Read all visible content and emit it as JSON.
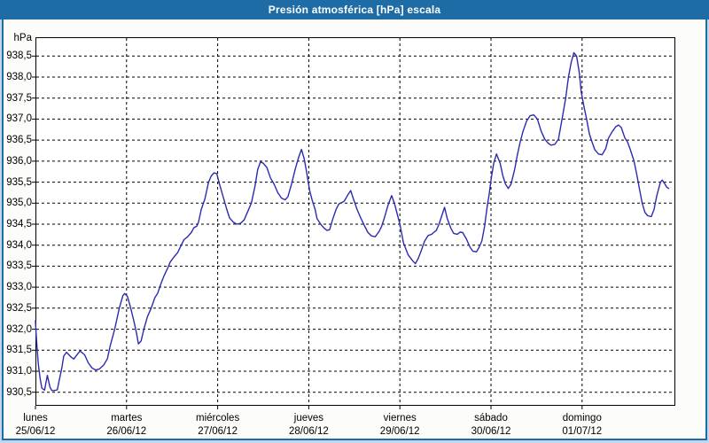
{
  "window": {
    "title": "Presión atmosférica [hPa] escala"
  },
  "colors": {
    "titlebar_blue": "#1e6ca6",
    "outer_halo_blue": "#c3d5e8",
    "content_background": "#fcfdfb",
    "grid_black": "#000000",
    "line_blue": "#2b2bb0"
  },
  "chart_data": {
    "type": "line",
    "title": "Presión atmosférica [hPa] escala",
    "grid": "dashed",
    "legend": "none",
    "line_color": "#2b2bb0",
    "y_axis": {
      "label": "hPa",
      "min": 930.5,
      "max": 938.5,
      "step": 0.5,
      "decimal_separator": ","
    },
    "x_axis": {
      "span_days": 7,
      "days": [
        {
          "name": "lunes",
          "date": "25/06/12"
        },
        {
          "name": "martes",
          "date": "26/06/12"
        },
        {
          "name": "miércoles",
          "date": "27/06/12"
        },
        {
          "name": "jueves",
          "date": "28/06/12"
        },
        {
          "name": "viernes",
          "date": "29/06/12"
        },
        {
          "name": "sábado",
          "date": "30/06/12"
        },
        {
          "name": "domingo",
          "date": "01/07/12"
        }
      ]
    },
    "series": [
      {
        "name": "presión atmosférica (hPa)",
        "points": [
          [
            0.0,
            932.2
          ],
          [
            0.01,
            931.8
          ],
          [
            0.03,
            931.2
          ],
          [
            0.05,
            930.85
          ],
          [
            0.07,
            930.6
          ],
          [
            0.1,
            930.55
          ],
          [
            0.13,
            930.9
          ],
          [
            0.16,
            930.62
          ],
          [
            0.18,
            930.54
          ],
          [
            0.21,
            930.54
          ],
          [
            0.24,
            930.56
          ],
          [
            0.26,
            930.77
          ],
          [
            0.29,
            931.08
          ],
          [
            0.31,
            931.36
          ],
          [
            0.34,
            931.45
          ],
          [
            0.39,
            931.34
          ],
          [
            0.42,
            931.29
          ],
          [
            0.47,
            931.43
          ],
          [
            0.49,
            931.48
          ],
          [
            0.54,
            931.39
          ],
          [
            0.58,
            931.2
          ],
          [
            0.62,
            931.08
          ],
          [
            0.66,
            931.03
          ],
          [
            0.7,
            931.05
          ],
          [
            0.75,
            931.15
          ],
          [
            0.79,
            931.3
          ],
          [
            0.82,
            931.6
          ],
          [
            0.87,
            932.0
          ],
          [
            0.92,
            932.5
          ],
          [
            0.96,
            932.8
          ],
          [
            0.98,
            932.85
          ],
          [
            1.01,
            932.78
          ],
          [
            1.04,
            932.55
          ],
          [
            1.08,
            932.2
          ],
          [
            1.11,
            931.9
          ],
          [
            1.13,
            931.65
          ],
          [
            1.16,
            931.72
          ],
          [
            1.19,
            932.0
          ],
          [
            1.23,
            932.3
          ],
          [
            1.27,
            932.5
          ],
          [
            1.31,
            932.75
          ],
          [
            1.34,
            932.85
          ],
          [
            1.38,
            933.1
          ],
          [
            1.41,
            933.26
          ],
          [
            1.45,
            933.45
          ],
          [
            1.48,
            933.6
          ],
          [
            1.52,
            933.72
          ],
          [
            1.56,
            933.82
          ],
          [
            1.6,
            934.0
          ],
          [
            1.63,
            934.13
          ],
          [
            1.67,
            934.2
          ],
          [
            1.71,
            934.3
          ],
          [
            1.74,
            934.42
          ],
          [
            1.77,
            934.45
          ],
          [
            1.79,
            934.55
          ],
          [
            1.82,
            934.85
          ],
          [
            1.86,
            935.1
          ],
          [
            1.9,
            935.5
          ],
          [
            1.93,
            935.65
          ],
          [
            1.96,
            935.72
          ],
          [
            1.99,
            935.7
          ],
          [
            2.02,
            935.45
          ],
          [
            2.06,
            935.15
          ],
          [
            2.1,
            934.85
          ],
          [
            2.13,
            934.65
          ],
          [
            2.17,
            934.55
          ],
          [
            2.21,
            934.5
          ],
          [
            2.25,
            934.52
          ],
          [
            2.29,
            934.6
          ],
          [
            2.33,
            934.8
          ],
          [
            2.37,
            935.0
          ],
          [
            2.41,
            935.4
          ],
          [
            2.44,
            935.8
          ],
          [
            2.47,
            935.98
          ],
          [
            2.5,
            935.95
          ],
          [
            2.54,
            935.85
          ],
          [
            2.58,
            935.6
          ],
          [
            2.62,
            935.45
          ],
          [
            2.66,
            935.25
          ],
          [
            2.7,
            935.12
          ],
          [
            2.74,
            935.08
          ],
          [
            2.77,
            935.15
          ],
          [
            2.81,
            935.45
          ],
          [
            2.85,
            935.8
          ],
          [
            2.89,
            936.1
          ],
          [
            2.92,
            936.28
          ],
          [
            2.95,
            936.05
          ],
          [
            2.98,
            935.7
          ],
          [
            3.01,
            935.3
          ],
          [
            3.04,
            935.05
          ],
          [
            3.07,
            934.85
          ],
          [
            3.09,
            934.63
          ],
          [
            3.13,
            934.5
          ],
          [
            3.17,
            934.4
          ],
          [
            3.2,
            934.35
          ],
          [
            3.23,
            934.37
          ],
          [
            3.26,
            934.6
          ],
          [
            3.3,
            934.85
          ],
          [
            3.33,
            934.98
          ],
          [
            3.37,
            935.02
          ],
          [
            3.39,
            935.05
          ],
          [
            3.43,
            935.2
          ],
          [
            3.46,
            935.3
          ],
          [
            3.49,
            935.1
          ],
          [
            3.53,
            934.85
          ],
          [
            3.57,
            934.65
          ],
          [
            3.61,
            934.47
          ],
          [
            3.65,
            934.3
          ],
          [
            3.69,
            934.22
          ],
          [
            3.73,
            934.2
          ],
          [
            3.77,
            934.32
          ],
          [
            3.8,
            934.45
          ],
          [
            3.83,
            934.65
          ],
          [
            3.87,
            934.95
          ],
          [
            3.91,
            935.18
          ],
          [
            3.94,
            935.0
          ],
          [
            3.96,
            934.83
          ],
          [
            4.0,
            934.5
          ],
          [
            4.04,
            934.05
          ],
          [
            4.09,
            933.77
          ],
          [
            4.14,
            933.63
          ],
          [
            4.17,
            933.56
          ],
          [
            4.2,
            933.68
          ],
          [
            4.23,
            933.84
          ],
          [
            4.27,
            934.09
          ],
          [
            4.31,
            934.23
          ],
          [
            4.35,
            934.26
          ],
          [
            4.37,
            934.3
          ],
          [
            4.4,
            934.35
          ],
          [
            4.43,
            934.5
          ],
          [
            4.46,
            934.7
          ],
          [
            4.49,
            934.9
          ],
          [
            4.52,
            934.63
          ],
          [
            4.56,
            934.4
          ],
          [
            4.59,
            934.28
          ],
          [
            4.63,
            934.26
          ],
          [
            4.66,
            934.31
          ],
          [
            4.69,
            934.3
          ],
          [
            4.73,
            934.15
          ],
          [
            4.77,
            933.95
          ],
          [
            4.8,
            933.86
          ],
          [
            4.84,
            933.84
          ],
          [
            4.87,
            933.95
          ],
          [
            4.9,
            934.1
          ],
          [
            4.93,
            934.45
          ],
          [
            4.96,
            934.95
          ],
          [
            4.98,
            935.2
          ],
          [
            5.0,
            935.55
          ],
          [
            5.03,
            935.95
          ],
          [
            5.06,
            936.17
          ],
          [
            5.1,
            935.95
          ],
          [
            5.13,
            935.65
          ],
          [
            5.16,
            935.45
          ],
          [
            5.19,
            935.35
          ],
          [
            5.22,
            935.45
          ],
          [
            5.26,
            935.8
          ],
          [
            5.29,
            936.15
          ],
          [
            5.32,
            936.45
          ],
          [
            5.35,
            936.7
          ],
          [
            5.39,
            936.95
          ],
          [
            5.43,
            937.08
          ],
          [
            5.47,
            937.1
          ],
          [
            5.51,
            937.0
          ],
          [
            5.55,
            936.72
          ],
          [
            5.59,
            936.52
          ],
          [
            5.63,
            936.42
          ],
          [
            5.66,
            936.38
          ],
          [
            5.7,
            936.4
          ],
          [
            5.74,
            936.52
          ],
          [
            5.78,
            937.0
          ],
          [
            5.82,
            937.5
          ],
          [
            5.85,
            938.0
          ],
          [
            5.88,
            938.35
          ],
          [
            5.91,
            938.58
          ],
          [
            5.94,
            938.5
          ],
          [
            5.97,
            938.1
          ],
          [
            5.99,
            937.65
          ],
          [
            6.02,
            937.3
          ],
          [
            6.05,
            937.0
          ],
          [
            6.08,
            936.65
          ],
          [
            6.11,
            936.45
          ],
          [
            6.14,
            936.27
          ],
          [
            6.18,
            936.17
          ],
          [
            6.22,
            936.15
          ],
          [
            6.26,
            936.3
          ],
          [
            6.29,
            936.55
          ],
          [
            6.33,
            936.7
          ],
          [
            6.37,
            936.82
          ],
          [
            6.4,
            936.86
          ],
          [
            6.43,
            936.8
          ],
          [
            6.47,
            936.55
          ],
          [
            6.5,
            936.45
          ],
          [
            6.53,
            936.27
          ],
          [
            6.57,
            936.0
          ],
          [
            6.6,
            935.68
          ],
          [
            6.63,
            935.33
          ],
          [
            6.66,
            935.0
          ],
          [
            6.69,
            934.78
          ],
          [
            6.72,
            934.7
          ],
          [
            6.76,
            934.68
          ],
          [
            6.79,
            934.85
          ],
          [
            6.82,
            935.18
          ],
          [
            6.86,
            935.5
          ],
          [
            6.88,
            935.55
          ],
          [
            6.91,
            935.45
          ],
          [
            6.93,
            935.38
          ],
          [
            6.95,
            935.35
          ]
        ]
      }
    ]
  }
}
